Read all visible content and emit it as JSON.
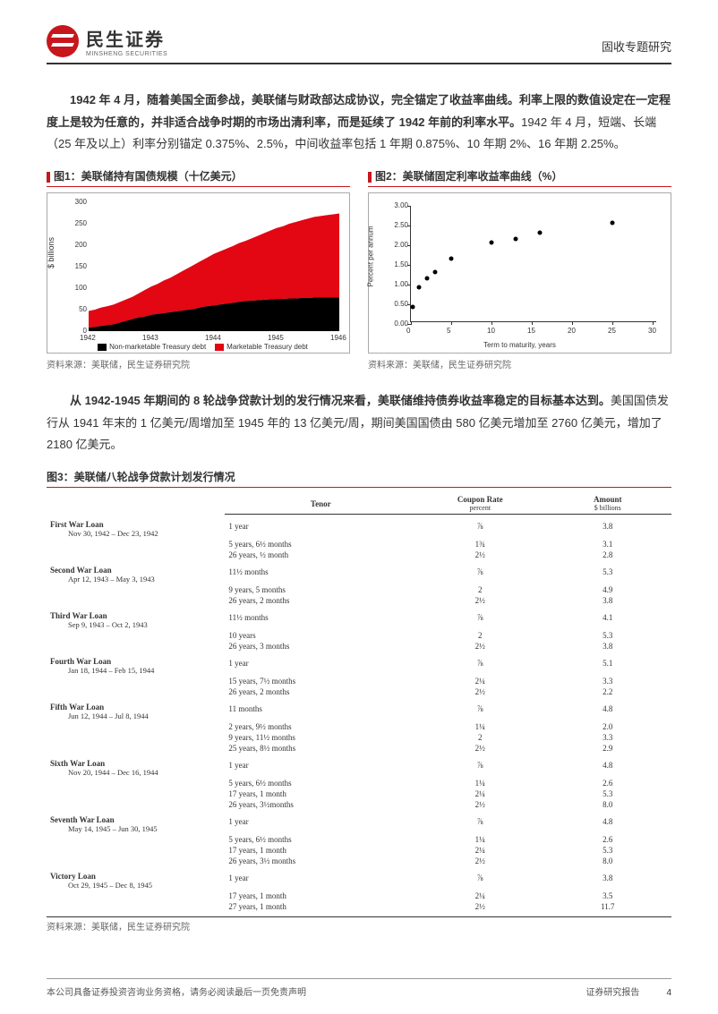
{
  "header": {
    "logo_cn": "民生证券",
    "logo_en": "MINSHENG SECURITIES",
    "right": "固收专题研究"
  },
  "para1": {
    "bold": "1942 年 4 月，随着美国全面参战，美联储与财政部达成协议，完全锚定了收益率曲线。利率上限的数值设定在一定程度上是较为任意的，并非适合战争时期的市场出清利率，而是延续了 1942 年前的利率水平。",
    "rest": "1942 年 4 月，短端、长端（25 年及以上）利率分别锚定 0.375%、2.5%，中间收益率包括 1 年期 0.875%、10 年期 2%、16 年期 2.25%。"
  },
  "chart1": {
    "title": "图1：美联储持有国债规模（十亿美元）",
    "ylabel": "$ billions",
    "ylim": [
      0,
      300
    ],
    "ytick_step": 50,
    "x_categories": [
      "1942",
      "1943",
      "1944",
      "1945",
      "1946"
    ],
    "type": "stacked-area",
    "series": [
      {
        "name": "Non-marketable Treasury debt",
        "color": "#000000",
        "points": [
          8,
          10,
          12,
          14,
          16,
          20,
          24,
          28,
          32,
          34,
          38,
          40,
          42,
          44,
          46,
          48,
          50,
          52,
          56,
          58,
          60,
          62,
          64,
          66,
          68,
          70,
          71,
          72,
          73,
          74,
          75,
          75,
          76,
          76,
          77,
          77,
          78,
          78,
          78,
          78,
          78
        ]
      },
      {
        "name": "Marketable Treasury debt",
        "color": "#e30613",
        "points": [
          47,
          50,
          55,
          58,
          62,
          68,
          74,
          80,
          88,
          96,
          104,
          110,
          118,
          124,
          132,
          140,
          148,
          156,
          164,
          172,
          180,
          186,
          192,
          198,
          205,
          210,
          216,
          222,
          228,
          234,
          240,
          244,
          250,
          254,
          258,
          262,
          266,
          268,
          270,
          272,
          274
        ]
      }
    ],
    "legend": [
      "Non-marketable Treasury debt",
      "Marketable Treasury debt"
    ],
    "source": "资料来源：美联储，民生证券研究院",
    "background_color": "#ffffff"
  },
  "chart2": {
    "title": "图2：美联储固定利率收益率曲线（%）",
    "type": "scatter",
    "xlabel": "Term to maturity, years",
    "ylabel": "Percent per annum",
    "xlim": [
      0,
      30
    ],
    "xtick_step": 5,
    "ylim": [
      0,
      3.0
    ],
    "ytick_step": 0.5,
    "points": [
      {
        "x": 0.25,
        "y": 0.375
      },
      {
        "x": 1,
        "y": 0.875
      },
      {
        "x": 2,
        "y": 1.1
      },
      {
        "x": 3,
        "y": 1.25
      },
      {
        "x": 5,
        "y": 1.6
      },
      {
        "x": 10,
        "y": 2.0
      },
      {
        "x": 13,
        "y": 2.1
      },
      {
        "x": 16,
        "y": 2.25
      },
      {
        "x": 25,
        "y": 2.5
      }
    ],
    "dot_color": "#000000",
    "source": "资料来源：美联储，民生证券研究院",
    "background_color": "#ffffff"
  },
  "para2": {
    "bold": "从 1942-1945 年期间的 8 轮战争贷款计划的发行情况来看，美联储维持债券收益率稳定的目标基本达到。",
    "rest": "美国国债发行从 1941 年末的 1 亿美元/周增加至 1945 年的 13 亿美元/周，期间美国国债由 580 亿美元增加至 2760 亿美元，增加了 2180 亿美元。"
  },
  "table3": {
    "title": "图3：美联储八轮战争贷款计划发行情况",
    "columns": [
      "Tenor",
      "Coupon Rate",
      "Amount"
    ],
    "col_sub": [
      "",
      "percent",
      "$ billions"
    ],
    "loans": [
      {
        "name": "First War Loan",
        "date": "Nov 30, 1942 – Dec 23, 1942",
        "rows": [
          [
            "1 year",
            "⅞",
            "3.8"
          ],
          [
            "5 years, 6½ months",
            "1¾",
            "3.1"
          ],
          [
            "26 years, ½ month",
            "2½",
            "2.8"
          ]
        ]
      },
      {
        "name": "Second War Loan",
        "date": "Apr 12, 1943 – May 3, 1943",
        "rows": [
          [
            "11½ months",
            "⅞",
            "5.3"
          ],
          [
            "9 years, 5 months",
            "2",
            "4.9"
          ],
          [
            "26 years, 2 months",
            "2½",
            "3.8"
          ]
        ]
      },
      {
        "name": "Third War Loan",
        "date": "Sep 9, 1943 – Oct 2, 1943",
        "rows": [
          [
            "11½ months",
            "⅞",
            "4.1"
          ],
          [
            "10 years",
            "2",
            "5.3"
          ],
          [
            "26 years, 3 months",
            "2½",
            "3.8"
          ]
        ]
      },
      {
        "name": "Fourth War Loan",
        "date": "Jan 18, 1944 – Feb 15, 1944",
        "rows": [
          [
            "1 year",
            "⅞",
            "5.1"
          ],
          [
            "15 years, 7½ months",
            "2¼",
            "3.3"
          ],
          [
            "26 years, 2 months",
            "2½",
            "2.2"
          ]
        ]
      },
      {
        "name": "Fifth War Loan",
        "date": "Jun 12, 1944 – Jul 8, 1944",
        "rows": [
          [
            "11 months",
            "⅞",
            "4.8"
          ],
          [
            "2 years, 9½ months",
            "1¼",
            "2.0"
          ],
          [
            "9 years, 11½ months",
            "2",
            "3.3"
          ],
          [
            "25 years, 8½ months",
            "2½",
            "2.9"
          ]
        ]
      },
      {
        "name": "Sixth War Loan",
        "date": "Nov 20, 1944 – Dec 16, 1944",
        "rows": [
          [
            "1 year",
            "⅞",
            "4.8"
          ],
          [
            "5 years, 6½ months",
            "1¼",
            "2.6"
          ],
          [
            "17 years, 1 month",
            "2¼",
            "5.3"
          ],
          [
            "26 years, 3½months",
            "2½",
            "8.0"
          ]
        ]
      },
      {
        "name": "Seventh War Loan",
        "date": "May 14, 1945 – Jun 30, 1945",
        "rows": [
          [
            "1 year",
            "⅞",
            "4.8"
          ],
          [
            "5 years, 6½ months",
            "1¼",
            "2.6"
          ],
          [
            "17 years, 1 month",
            "2¼",
            "5.3"
          ],
          [
            "26 years, 3½ months",
            "2½",
            "8.0"
          ]
        ]
      },
      {
        "name": "Victory Loan",
        "date": "Oct 29, 1945 – Dec 8, 1945",
        "rows": [
          [
            "1 year",
            "⅞",
            "3.8"
          ],
          [
            "17 years, 1 month",
            "2¼",
            "3.5"
          ],
          [
            "27 years, 1 month",
            "2½",
            "11.7"
          ]
        ]
      }
    ],
    "source": "资料来源：美联储，民生证券研究院"
  },
  "footer": {
    "left": "本公司具备证券投资咨询业务资格，请务必阅读最后一页免责声明",
    "right": "证券研究报告",
    "page": "4"
  },
  "colors": {
    "brand_red": "#c8161d",
    "chart_red": "#e30613"
  }
}
